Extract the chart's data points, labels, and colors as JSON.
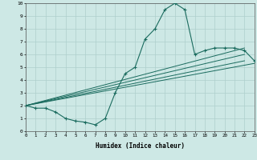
{
  "xlabel": "Humidex (Indice chaleur)",
  "background_color": "#cde8e5",
  "grid_color": "#aecfcc",
  "line_color": "#1a6b5e",
  "xmin": 0,
  "xmax": 23,
  "ymin": 0,
  "ymax": 10,
  "line1_x": [
    0,
    1,
    2,
    3,
    4,
    5,
    6,
    7,
    8,
    9,
    10,
    11,
    12,
    13,
    14,
    15,
    16,
    17,
    18,
    19,
    20,
    21,
    22,
    23
  ],
  "line1_y": [
    2.0,
    1.8,
    1.8,
    1.5,
    1.0,
    0.8,
    0.7,
    0.5,
    1.0,
    3.0,
    4.5,
    5.0,
    7.2,
    8.0,
    9.5,
    10.0,
    9.5,
    6.0,
    6.3,
    6.5,
    6.5,
    6.5,
    6.3,
    5.5
  ],
  "line2_x": [
    0,
    22
  ],
  "line2_y": [
    2.0,
    6.5
  ],
  "line3_x": [
    0,
    22
  ],
  "line3_y": [
    2.0,
    6.0
  ],
  "line4_x": [
    0,
    22
  ],
  "line4_y": [
    2.0,
    5.5
  ],
  "line5_x": [
    0,
    23
  ],
  "line5_y": [
    2.0,
    5.3
  ],
  "xtick_labels": [
    "0",
    "1",
    "2",
    "3",
    "4",
    "5",
    "6",
    "7",
    "8",
    "9",
    "10",
    "11",
    "12",
    "13",
    "14",
    "15",
    "16",
    "17",
    "18",
    "19",
    "20",
    "21",
    "22",
    "23"
  ],
  "ytick_labels": [
    "0",
    "1",
    "2",
    "3",
    "4",
    "5",
    "6",
    "7",
    "8",
    "9",
    "10"
  ]
}
